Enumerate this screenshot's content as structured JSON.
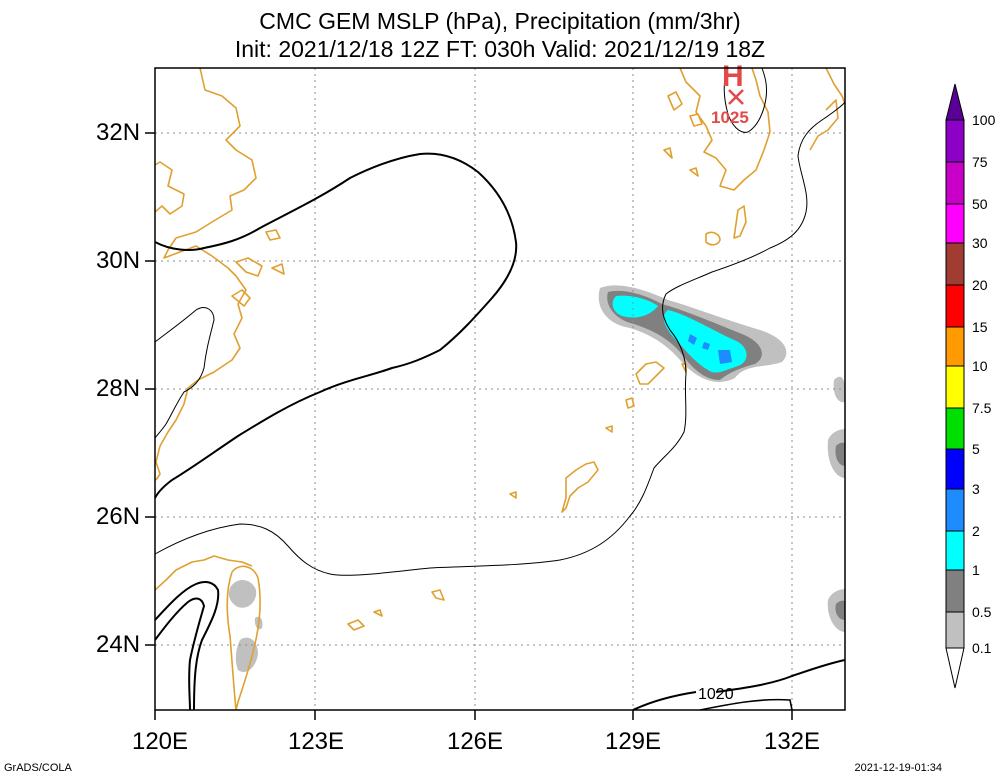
{
  "title": {
    "line1": "CMC GEM MSLP (hPa), Precipitation (mm/3hr)",
    "line2": "Init: 2021/12/18 12Z  FT: 030h  Valid: 2021/12/19 18Z"
  },
  "map": {
    "lon_ticks": [
      "120E",
      "123E",
      "126E",
      "129E",
      "132E"
    ],
    "lat_ticks": [
      "32N",
      "30N",
      "28N",
      "26N",
      "24N"
    ],
    "grid": true,
    "high_center": {
      "label": "H",
      "pressure": "1025"
    },
    "contour_label": "1020",
    "coastline_color": "#e0a030",
    "isobar_color": "#000000"
  },
  "colorbar": {
    "labels": [
      "100",
      "75",
      "50",
      "30",
      "20",
      "15",
      "10",
      "7.5",
      "5",
      "3",
      "2",
      "1",
      "0.5",
      "0.1"
    ],
    "colors": [
      "#8c00c8",
      "#c800c8",
      "#ff00ff",
      "#a03c32",
      "#ff0000",
      "#ff9a00",
      "#ffff00",
      "#00e000",
      "#0000ff",
      "#1e8cff",
      "#00ffff",
      "#808080",
      "#c0c0c0"
    ],
    "top_arrow_color": "#5a0096"
  },
  "footer": {
    "left": "GrADS/COLA",
    "right": "2021-12-19-01:34"
  }
}
